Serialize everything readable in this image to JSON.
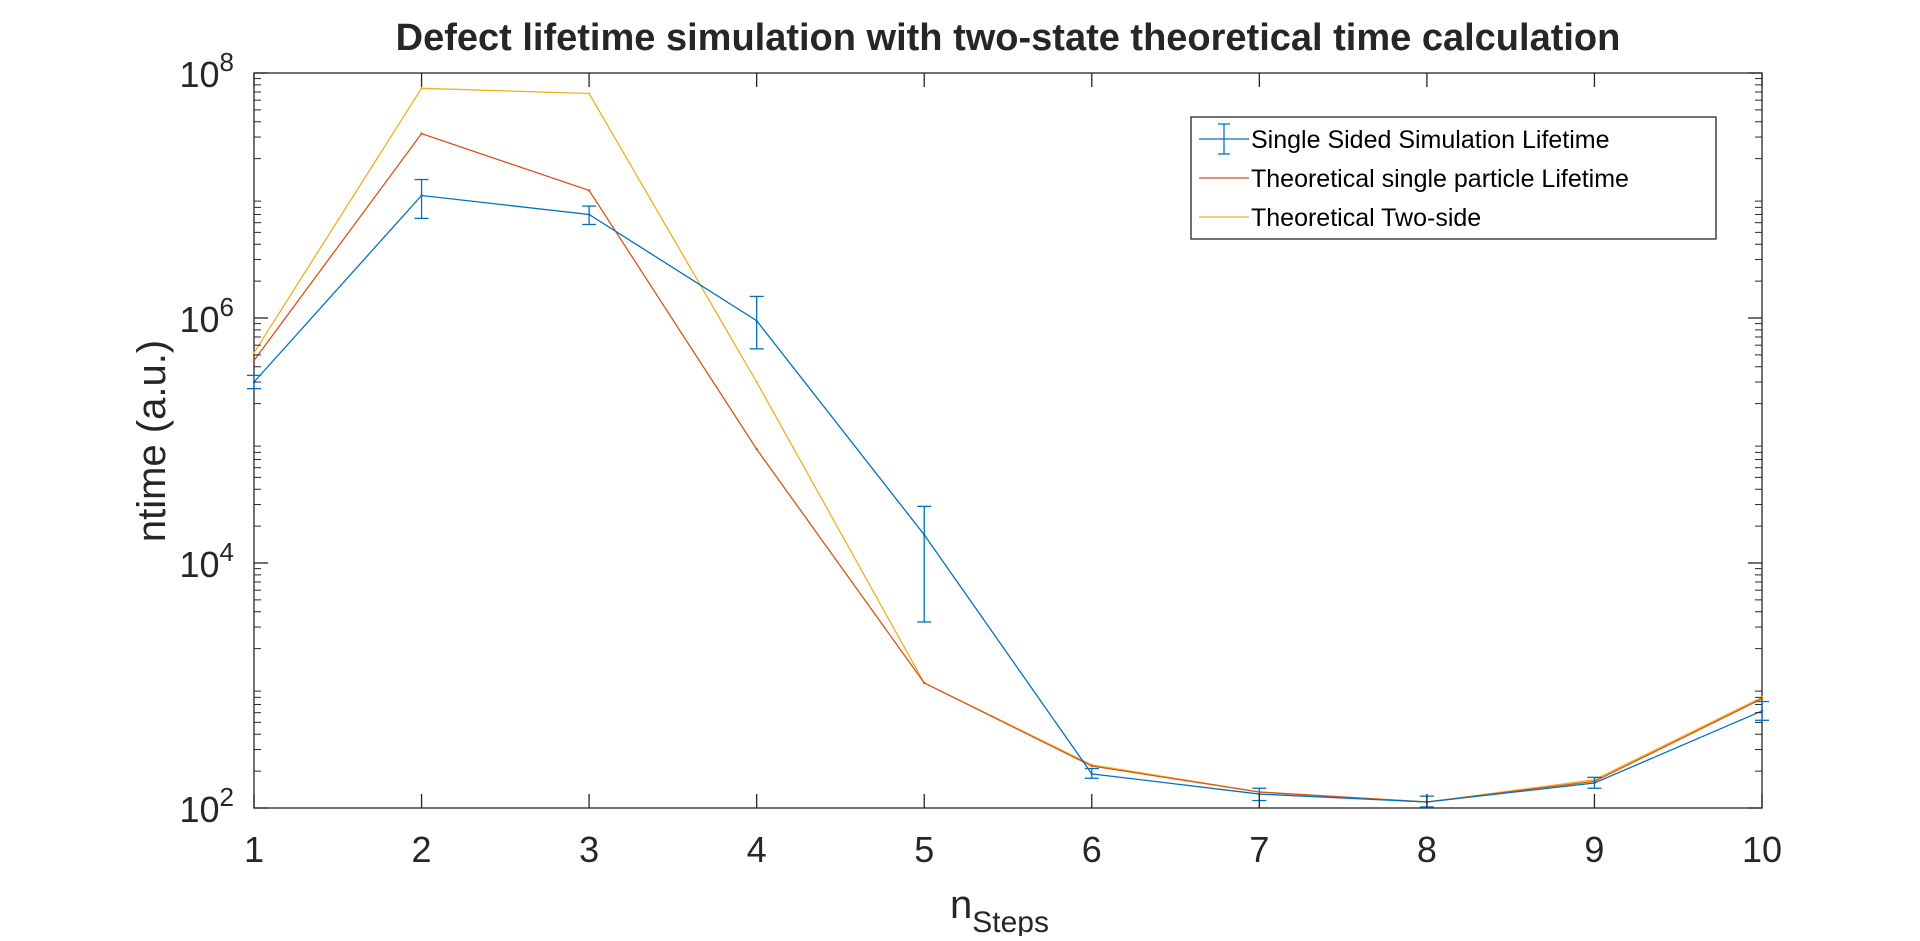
{
  "chart_data": {
    "type": "line",
    "title": "Defect lifetime simulation with two-state theoretical time calculation",
    "xlabel": "n",
    "xlabel_sub": "Steps",
    "ylabel": "ntime (a.u.)",
    "yscale": "log",
    "xlim": [
      1,
      10
    ],
    "ylim": [
      100,
      100000000
    ],
    "xticks": [
      1,
      2,
      3,
      4,
      5,
      6,
      7,
      8,
      9,
      10
    ],
    "xtick_labels": [
      "1",
      "2",
      "3",
      "4",
      "5",
      "6",
      "7",
      "8",
      "9",
      "10"
    ],
    "yticks": [
      {
        "value": 100,
        "base": "10",
        "exp": "2"
      },
      {
        "value": 10000,
        "base": "10",
        "exp": "4"
      },
      {
        "value": 1000000,
        "base": "10",
        "exp": "6"
      },
      {
        "value": 100000000,
        "base": "10",
        "exp": "8"
      }
    ],
    "grid": false,
    "legend_position": "top-right",
    "x": [
      1,
      2,
      3,
      4,
      5,
      6,
      7,
      8,
      9,
      10
    ],
    "series": [
      {
        "name": "Single Sided Simulation Lifetime",
        "color": "#0072BD",
        "errorbars": true,
        "values": [
          300000,
          10000000,
          7000000,
          950000,
          17000,
          190,
          130,
          112,
          160,
          620
        ],
        "lower": [
          265000,
          6500000,
          5800000,
          560000,
          3300,
          175,
          115,
          102,
          145,
          520
        ],
        "upper": [
          340000,
          13500000,
          8200000,
          1500000,
          29000,
          210,
          145,
          125,
          178,
          740
        ]
      },
      {
        "name": "Theoretical single particle Lifetime",
        "color": "#D95319",
        "values": [
          450000,
          32000000,
          11000000,
          85000,
          1050,
          220,
          135,
          112,
          165,
          780
        ]
      },
      {
        "name": "Theoretical Two-side",
        "color": "#EDB120",
        "values": [
          520000,
          75000000,
          68000000,
          300000,
          1050,
          225,
          135,
          112,
          170,
          800
        ]
      }
    ]
  }
}
